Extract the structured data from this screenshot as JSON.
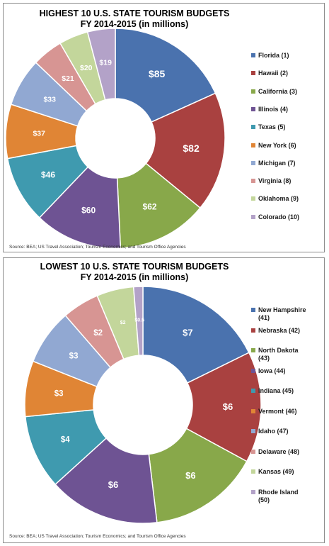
{
  "chart_data": [
    {
      "type": "pie",
      "title": "HIGHEST 10 U.S. STATE TOURISM BUDGETS",
      "subtitle": "FY 2014-2015 (in millions)",
      "categories": [
        "Florida (1)",
        "Hawaii (2)",
        "California (3)",
        "Illinois (4)",
        "Texas (5)",
        "New York (6)",
        "Michigan (7)",
        "Virginia (8)",
        "Oklahoma (9)",
        "Colorado (10)"
      ],
      "values": [
        85,
        82,
        62,
        60,
        46,
        37,
        33,
        21,
        20,
        19
      ],
      "data_labels": [
        "$85",
        "$82",
        "$62",
        "$60",
        "$46",
        "$37",
        "$33",
        "$21",
        "$20",
        "$19"
      ],
      "colors": [
        "#4A72AE",
        "#A94140",
        "#88A84A",
        "#6E5393",
        "#3F9AAF",
        "#E08535",
        "#91A8D2",
        "#D79593",
        "#C3D69B",
        "#B3A2C8"
      ],
      "legend": "right",
      "source": "Source: BEA; US Travel Association; Tourism Economics; and Tourism Office Agencies"
    },
    {
      "type": "pie",
      "title": "LOWEST 10 U.S. STATE TOURISM BUDGETS",
      "subtitle": "FY 2014-2015 (in millions)",
      "categories": [
        "New Hampshire (41)",
        "Nebraska (42)",
        "North Dakota (43)",
        "Iowa (44)",
        "Indiana (45)",
        "Vermont (46)",
        "Idaho (47)",
        "Delaware (48)",
        "Kansas (49)",
        "Rhode Island (50)"
      ],
      "values": [
        7,
        6,
        6,
        6,
        4,
        3,
        3,
        2,
        2,
        0.5
      ],
      "data_labels": [
        "$7",
        "$6",
        "$6",
        "$6",
        "$4",
        "$3",
        "$3",
        "$2",
        "$2",
        "$0.5"
      ],
      "colors": [
        "#4A72AE",
        "#A94140",
        "#88A84A",
        "#6E5393",
        "#3F9AAF",
        "#E08535",
        "#91A8D2",
        "#D79593",
        "#C3D69B",
        "#B3A2C8"
      ],
      "legend": "right",
      "source": "Source: BEA; US Travel Association; Tourism Economics; and Tourism Office Agencies"
    }
  ]
}
